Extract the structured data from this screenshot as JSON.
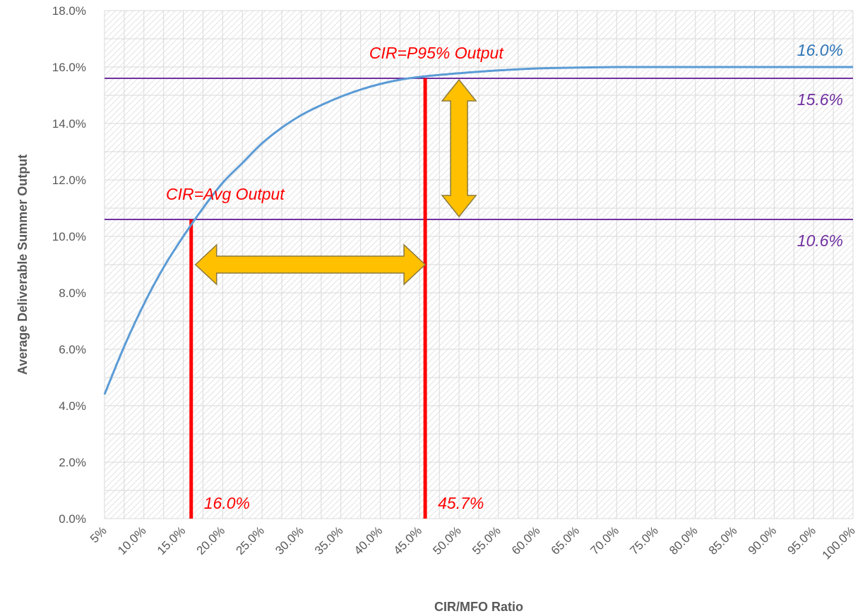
{
  "chart_data": {
    "type": "line",
    "title": "",
    "xlabel": "CIR/MFO Ratio",
    "ylabel": "Average Deliverable Summer Output",
    "x_ticks": [
      "5%",
      "10.0%",
      "15.0%",
      "20.0%",
      "25.0%",
      "30.0%",
      "35.0%",
      "40.0%",
      "45.0%",
      "50.0%",
      "55.0%",
      "60.0%",
      "65.0%",
      "70.0%",
      "75.0%",
      "80.0%",
      "85.0%",
      "90.0%",
      "95.0%",
      "100.0%"
    ],
    "y_ticks": [
      "0.0%",
      "2.0%",
      "4.0%",
      "6.0%",
      "8.0%",
      "10.0%",
      "12.0%",
      "14.0%",
      "16.0%",
      "18.0%"
    ],
    "xlim": [
      5,
      100
    ],
    "ylim": [
      0,
      18
    ],
    "grid": true,
    "series": [
      {
        "color": "#5b9bd5",
        "x": [
          5,
          7.5,
          10,
          12.5,
          15,
          17.5,
          20,
          22.5,
          25,
          27.5,
          30,
          32.5,
          35,
          37.5,
          40,
          42.5,
          45,
          47.5,
          50,
          55,
          60,
          65,
          70,
          75,
          80,
          85,
          90,
          95,
          100
        ],
        "y": [
          4.4,
          6.1,
          7.6,
          8.9,
          10.0,
          11.0,
          11.9,
          12.6,
          13.3,
          13.85,
          14.3,
          14.65,
          14.95,
          15.2,
          15.4,
          15.55,
          15.65,
          15.72,
          15.78,
          15.88,
          15.95,
          15.98,
          16.0,
          16.0,
          16.0,
          16.0,
          16.0,
          16.0,
          16.0
        ]
      }
    ],
    "reference_lines": [
      {
        "orientation": "horizontal",
        "y": 15.6,
        "color": "#7030a0",
        "label": "15.6%"
      },
      {
        "orientation": "horizontal",
        "y": 10.6,
        "color": "#7030a0",
        "label": "10.6%"
      },
      {
        "orientation": "vertical",
        "x": 16.0,
        "color": "#ff0000",
        "label": "16.0%"
      },
      {
        "orientation": "vertical",
        "x": 45.7,
        "color": "#ff0000",
        "label": "45.7%"
      }
    ],
    "annotations": {
      "avg_output": "CIR=Avg Output",
      "p95_output": "CIR=P95% Output",
      "series_end_value": "16.0%"
    },
    "arrows": [
      {
        "type": "double",
        "orientation": "horizontal",
        "x_from": 16.0,
        "x_to": 45.7,
        "y": 9.0,
        "color": "#ffc000"
      },
      {
        "type": "double",
        "orientation": "vertical",
        "x": 50.0,
        "y_from": 10.6,
        "y_to": 15.6,
        "color": "#ffc000"
      }
    ],
    "colors": {
      "curve": "#5b9bd5",
      "reference_horizontal": "#7030a0",
      "reference_vertical": "#ff0000",
      "arrow_fill": "#ffc000",
      "arrow_stroke": "#8c7a3f",
      "end_label": "#2e75b6"
    }
  }
}
